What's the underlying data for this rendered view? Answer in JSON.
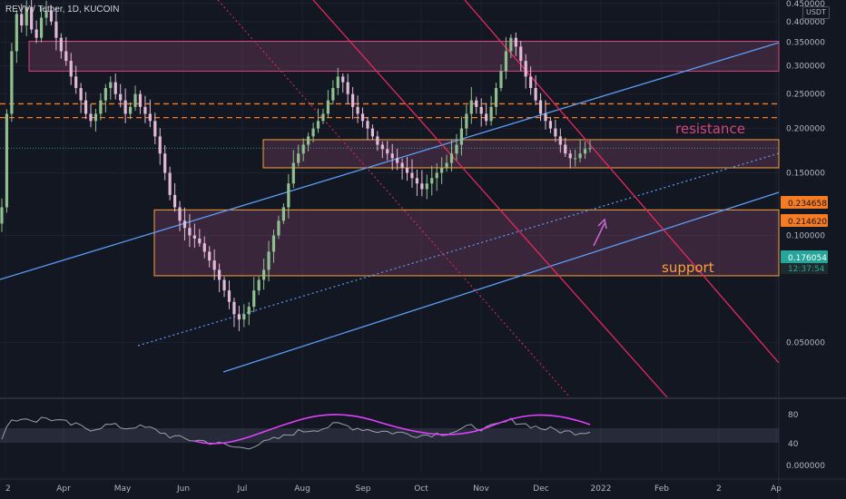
{
  "title": "REVV / Tether, 1D, KUCOIN",
  "currency_badge": "USDT",
  "colors": {
    "background": "#131722",
    "up_candle": "#8fbf8f",
    "down_candle": "#e3b9d8",
    "zone_fill": "#7b3f63",
    "resistance_border": "#d5467c",
    "support_border": "#f7a23b",
    "channel_line": "#5b9cf6",
    "down_line": "#e8285f",
    "dash_line": "#f57c22",
    "rsi_line": "#9aa0ab",
    "rsi_ma": "#e040fb",
    "arrow": "#c76bd2"
  },
  "chart_data": {
    "type": "candlestick",
    "x_axis_labels": [
      "2",
      "Apr",
      "May",
      "Jun",
      "Jul",
      "Aug",
      "Sep",
      "Oct",
      "Nov",
      "Dec",
      "2022",
      "Feb",
      "2",
      "Ap"
    ],
    "y_axis": {
      "scale": "log",
      "range": [
        0.035,
        0.46
      ],
      "ticks": [
        "0.450000",
        "0.400000",
        "0.350000",
        "0.300000",
        "0.250000",
        "0.200000",
        "0.150000",
        "0.100000",
        "0.050000"
      ]
    },
    "price_labels": [
      {
        "value": "0.234658",
        "color": "#f57c22"
      },
      {
        "value": "0.214620",
        "color": "#f57c22"
      },
      {
        "value": "0.176054",
        "color": "#26a69a"
      }
    ],
    "countdown": "12:37:54",
    "zones": [
      {
        "label": "resistance",
        "low": 0.29,
        "high": 0.352
      },
      {
        "label": "support",
        "low": 0.155,
        "high": 0.186
      },
      {
        "label": "",
        "low": 0.077,
        "high": 0.118
      }
    ],
    "horizontal_levels": [
      0.234658,
      0.21462
    ],
    "rsi": {
      "ticks": [
        "80",
        "40",
        "0.000000"
      ],
      "band": [
        40,
        60
      ]
    },
    "series_close": [
      0.12,
      0.22,
      0.33,
      0.42,
      0.39,
      0.44,
      0.38,
      0.36,
      0.41,
      0.43,
      0.4,
      0.36,
      0.33,
      0.31,
      0.28,
      0.26,
      0.24,
      0.22,
      0.21,
      0.22,
      0.24,
      0.26,
      0.27,
      0.25,
      0.24,
      0.22,
      0.23,
      0.25,
      0.23,
      0.22,
      0.21,
      0.19,
      0.17,
      0.15,
      0.13,
      0.12,
      0.11,
      0.105,
      0.1,
      0.098,
      0.095,
      0.09,
      0.085,
      0.08,
      0.075,
      0.07,
      0.065,
      0.06,
      0.058,
      0.06,
      0.063,
      0.07,
      0.075,
      0.08,
      0.09,
      0.1,
      0.11,
      0.12,
      0.14,
      0.16,
      0.17,
      0.18,
      0.19,
      0.2,
      0.21,
      0.22,
      0.24,
      0.26,
      0.28,
      0.27,
      0.25,
      0.23,
      0.22,
      0.21,
      0.2,
      0.19,
      0.18,
      0.175,
      0.17,
      0.165,
      0.16,
      0.155,
      0.15,
      0.145,
      0.14,
      0.135,
      0.14,
      0.145,
      0.15,
      0.155,
      0.16,
      0.17,
      0.18,
      0.2,
      0.22,
      0.24,
      0.23,
      0.22,
      0.21,
      0.23,
      0.26,
      0.29,
      0.33,
      0.36,
      0.34,
      0.31,
      0.28,
      0.26,
      0.24,
      0.22,
      0.21,
      0.2,
      0.19,
      0.18,
      0.17,
      0.165,
      0.165,
      0.17,
      0.175,
      0.176
    ]
  }
}
